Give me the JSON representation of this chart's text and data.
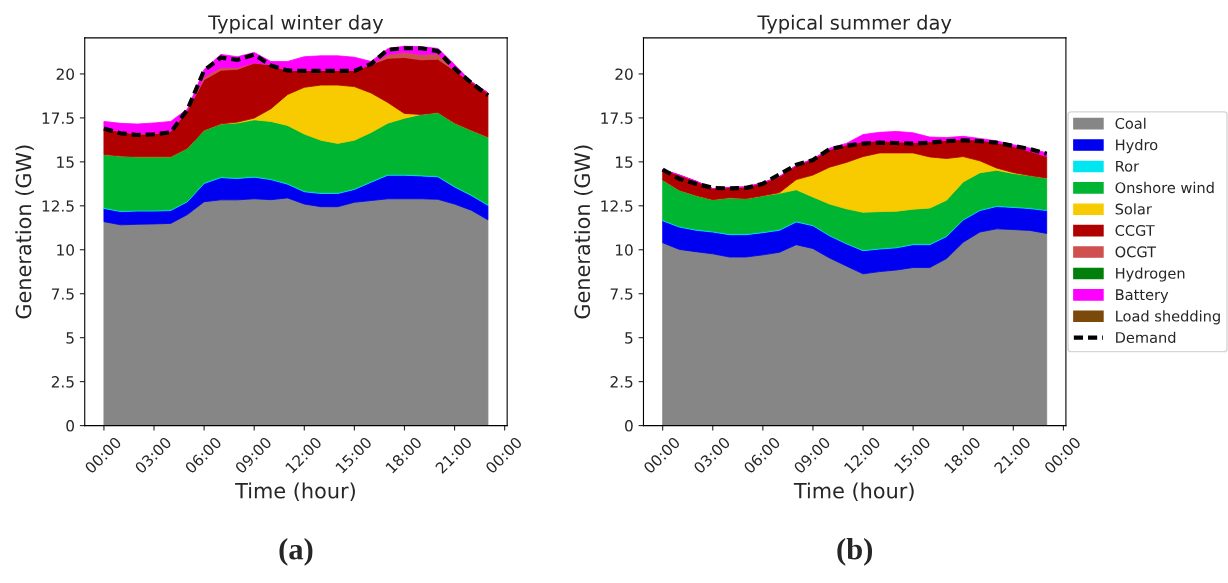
{
  "chart_data": [
    {
      "type": "area",
      "stacked": true,
      "title": "Typical winter day",
      "xlabel": "Time (hour)",
      "ylabel": "Generation (GW)",
      "legend": "right",
      "annotations": [
        "(a)"
      ],
      "x": [
        0,
        1,
        2,
        3,
        4,
        5,
        6,
        7,
        8,
        9,
        10,
        11,
        12,
        13,
        14,
        15,
        16,
        17,
        18,
        19,
        20,
        21,
        22,
        23
      ],
      "xlim": [
        -1.15,
        24.15
      ],
      "xticks": [
        {
          "value": 0,
          "label": "00:00"
        },
        {
          "value": 3,
          "label": "03:00"
        },
        {
          "value": 6,
          "label": "06:00"
        },
        {
          "value": 9,
          "label": "09:00"
        },
        {
          "value": 12,
          "label": "12:00"
        },
        {
          "value": 15,
          "label": "15:00"
        },
        {
          "value": 18,
          "label": "18:00"
        },
        {
          "value": 21,
          "label": "21:00"
        },
        {
          "value": 24,
          "label": "00:00"
        }
      ],
      "ylim": [
        0,
        22.05
      ],
      "yticks": [
        0,
        2.5,
        5,
        7.5,
        10,
        12.5,
        15,
        17.5,
        20
      ],
      "series": [
        {
          "name": "Coal",
          "color": "#868686",
          "values": [
            11.6,
            11.42,
            11.45,
            11.47,
            11.5,
            12.0,
            12.73,
            12.84,
            12.84,
            12.9,
            12.85,
            12.95,
            12.6,
            12.45,
            12.45,
            12.7,
            12.8,
            12.9,
            12.9,
            12.9,
            12.87,
            12.6,
            12.25,
            11.7
          ]
        },
        {
          "name": "Hydro",
          "color": "#0000f0",
          "values": [
            0.75,
            0.75,
            0.75,
            0.73,
            0.73,
            0.73,
            1.04,
            1.26,
            1.22,
            1.23,
            1.14,
            0.78,
            0.7,
            0.75,
            0.75,
            0.73,
            1.04,
            1.34,
            1.34,
            1.3,
            1.28,
            0.97,
            0.84,
            0.83
          ]
        },
        {
          "name": "Ror",
          "color": "#00e6f0",
          "values": [
            0.05,
            0.05,
            0.05,
            0.05,
            0.05,
            0.05,
            0.05,
            0.05,
            0.05,
            0.05,
            0.05,
            0.05,
            0.05,
            0.05,
            0.05,
            0.05,
            0.05,
            0.05,
            0.05,
            0.05,
            0.05,
            0.05,
            0.05,
            0.05
          ]
        },
        {
          "name": "Onshore wind",
          "color": "#00b531",
          "values": [
            3.02,
            3.11,
            3.04,
            3.04,
            3.01,
            3.0,
            2.98,
            3.01,
            3.1,
            3.21,
            3.26,
            3.29,
            3.23,
            2.98,
            2.8,
            2.75,
            2.78,
            2.91,
            3.19,
            3.45,
            3.61,
            3.59,
            3.66,
            3.83
          ]
        },
        {
          "name": "Solar",
          "color": "#f7cb00",
          "values": [
            0,
            0,
            0,
            0,
            0,
            0,
            0,
            0,
            0.05,
            0.1,
            0.72,
            1.76,
            2.66,
            3.14,
            3.32,
            3.05,
            2.25,
            1.18,
            0.27,
            0,
            0,
            0,
            0,
            0
          ]
        },
        {
          "name": "CCGT",
          "color": "#b00000",
          "values": [
            1.47,
            1.4,
            1.29,
            1.33,
            1.44,
            2.15,
            2.87,
            3.05,
            3.0,
            3.13,
            2.51,
            1.35,
            0.97,
            0.84,
            0.84,
            0.93,
            1.61,
            2.51,
            3.18,
            3.1,
            3.03,
            2.97,
            2.75,
            2.51
          ]
        },
        {
          "name": "OCGT",
          "color": "#d05050",
          "values": [
            0,
            0,
            0,
            0,
            0,
            0,
            0.15,
            0.15,
            0.1,
            0,
            0,
            0,
            0,
            0,
            0,
            0,
            0,
            0.2,
            0.3,
            0.3,
            0.3,
            0,
            0,
            0
          ]
        },
        {
          "name": "Hydrogen",
          "color": "#00800a",
          "values": [
            null,
            null,
            null,
            null,
            null,
            null,
            null,
            null,
            null,
            null,
            null,
            null,
            null,
            null,
            null,
            null,
            null,
            null,
            null,
            null,
            null,
            null,
            null,
            null
          ]
        },
        {
          "name": "Battery",
          "color": "#ff00ff",
          "values": [
            0.41,
            0.46,
            0.57,
            0.59,
            0.57,
            0.07,
            0.43,
            0.75,
            0.62,
            0.6,
            0.18,
            0.53,
            0.77,
            0.82,
            0.82,
            0.74,
            0.18,
            0.34,
            0.35,
            0.45,
            0.31,
            0.35,
            0,
            0
          ]
        },
        {
          "name": "Load shedding",
          "color": "#7b4a0a",
          "values": [
            null,
            null,
            null,
            null,
            null,
            null,
            null,
            null,
            null,
            null,
            null,
            null,
            null,
            null,
            null,
            null,
            null,
            null,
            null,
            null,
            null,
            null,
            null,
            null
          ]
        },
        {
          "name": "Demand",
          "type": "line",
          "line_style": "dashed",
          "color": "#000000",
          "values": [
            16.89,
            16.62,
            16.53,
            16.57,
            16.68,
            17.97,
            20.2,
            20.93,
            20.8,
            21.1,
            20.48,
            20.2,
            20.17,
            20.17,
            20.17,
            20.17,
            20.57,
            21.38,
            21.46,
            21.46,
            21.3,
            20.3,
            19.5,
            18.78
          ]
        }
      ]
    },
    {
      "type": "area",
      "stacked": true,
      "title": "Typical summer day",
      "xlabel": "Time (hour)",
      "ylabel": "Generation (GW)",
      "legend": "right",
      "annotations": [
        "(b)"
      ],
      "x": [
        0,
        1,
        2,
        3,
        4,
        5,
        6,
        7,
        8,
        9,
        10,
        11,
        12,
        13,
        14,
        15,
        16,
        17,
        18,
        19,
        20,
        21,
        22,
        23
      ],
      "xlim": [
        -1.15,
        24.15
      ],
      "xticks": [
        {
          "value": 0,
          "label": "00:00"
        },
        {
          "value": 3,
          "label": "03:00"
        },
        {
          "value": 6,
          "label": "06:00"
        },
        {
          "value": 9,
          "label": "09:00"
        },
        {
          "value": 12,
          "label": "12:00"
        },
        {
          "value": 15,
          "label": "15:00"
        },
        {
          "value": 18,
          "label": "18:00"
        },
        {
          "value": 21,
          "label": "21:00"
        },
        {
          "value": 24,
          "label": "00:00"
        }
      ],
      "ylim": [
        0,
        22.05
      ],
      "yticks": [
        0,
        2.5,
        5,
        7.5,
        10,
        12.5,
        15,
        17.5,
        20
      ],
      "series": [
        {
          "name": "Coal",
          "color": "#868686",
          "values": [
            10.4,
            10.02,
            9.89,
            9.77,
            9.59,
            9.59,
            9.71,
            9.86,
            10.29,
            10.07,
            9.53,
            9.08,
            8.63,
            8.76,
            8.85,
            8.99,
            8.99,
            9.5,
            10.43,
            11.01,
            11.19,
            11.15,
            11.1,
            10.93
          ]
        },
        {
          "name": "Hydro",
          "color": "#0000f0",
          "values": [
            1.25,
            1.27,
            1.22,
            1.24,
            1.27,
            1.27,
            1.26,
            1.25,
            1.29,
            1.3,
            1.26,
            1.26,
            1.32,
            1.28,
            1.26,
            1.3,
            1.3,
            1.25,
            1.26,
            1.22,
            1.27,
            1.26,
            1.24,
            1.3
          ]
        },
        {
          "name": "Ror",
          "color": "#00e6f0",
          "values": [
            0.05,
            0.05,
            0.05,
            0.05,
            0.05,
            0.05,
            0.05,
            0.05,
            0.05,
            0.05,
            0.05,
            0.05,
            0.05,
            0.05,
            0.05,
            0.05,
            0.05,
            0.05,
            0.05,
            0.05,
            0.05,
            0.05,
            0.05,
            0.05
          ]
        },
        {
          "name": "Onshore wind",
          "color": "#00b531",
          "values": [
            2.27,
            2.05,
            1.93,
            1.79,
            2.05,
            2.0,
            2.05,
            2.05,
            1.78,
            1.58,
            1.76,
            1.94,
            2.13,
            2.08,
            2.03,
            1.97,
            2.03,
            2.02,
            2.12,
            2.1,
            2.01,
            1.88,
            1.83,
            1.8
          ]
        },
        {
          "name": "Solar",
          "color": "#f7cb00",
          "values": [
            0,
            0,
            0,
            0,
            0,
            0,
            0,
            0.04,
            0.58,
            1.25,
            2.1,
            2.64,
            3.17,
            3.34,
            3.32,
            3.2,
            2.91,
            2.37,
            1.44,
            0.68,
            0.13,
            0.05,
            0,
            0
          ]
        },
        {
          "name": "CCGT",
          "color": "#b00000",
          "values": [
            0.59,
            0.86,
            0.81,
            0.63,
            0.58,
            0.66,
            0.74,
            0.91,
            0.8,
            0.9,
            0.99,
            0.99,
            0.84,
            0.69,
            0.63,
            0.58,
            0.86,
            1.04,
            0.97,
            1.17,
            1.44,
            1.48,
            1.38,
            1.22
          ]
        },
        {
          "name": "OCGT",
          "color": "#d05050",
          "values": [
            null,
            null,
            null,
            null,
            null,
            null,
            null,
            null,
            null,
            null,
            null,
            null,
            null,
            null,
            null,
            null,
            null,
            null,
            null,
            null,
            null,
            null,
            null,
            null
          ]
        },
        {
          "name": "Battery",
          "color": "#ff00ff",
          "values": [
            0,
            0,
            0,
            0,
            0,
            0,
            0,
            0,
            0,
            0,
            0.09,
            0.09,
            0.41,
            0.48,
            0.59,
            0.56,
            0.27,
            0.15,
            0.18,
            0.1,
            0.1,
            0.1,
            0.18,
            0.21
          ]
        },
        {
          "name": "Demand",
          "type": "line",
          "line_style": "dashed",
          "color": "#000000",
          "values": [
            14.56,
            14.03,
            13.76,
            13.52,
            13.49,
            13.52,
            13.76,
            14.29,
            14.83,
            15.1,
            15.73,
            15.91,
            16.04,
            16.09,
            16.07,
            16.04,
            16.09,
            16.18,
            16.22,
            16.18,
            16.09,
            15.91,
            15.73,
            15.46
          ]
        }
      ]
    }
  ]
}
